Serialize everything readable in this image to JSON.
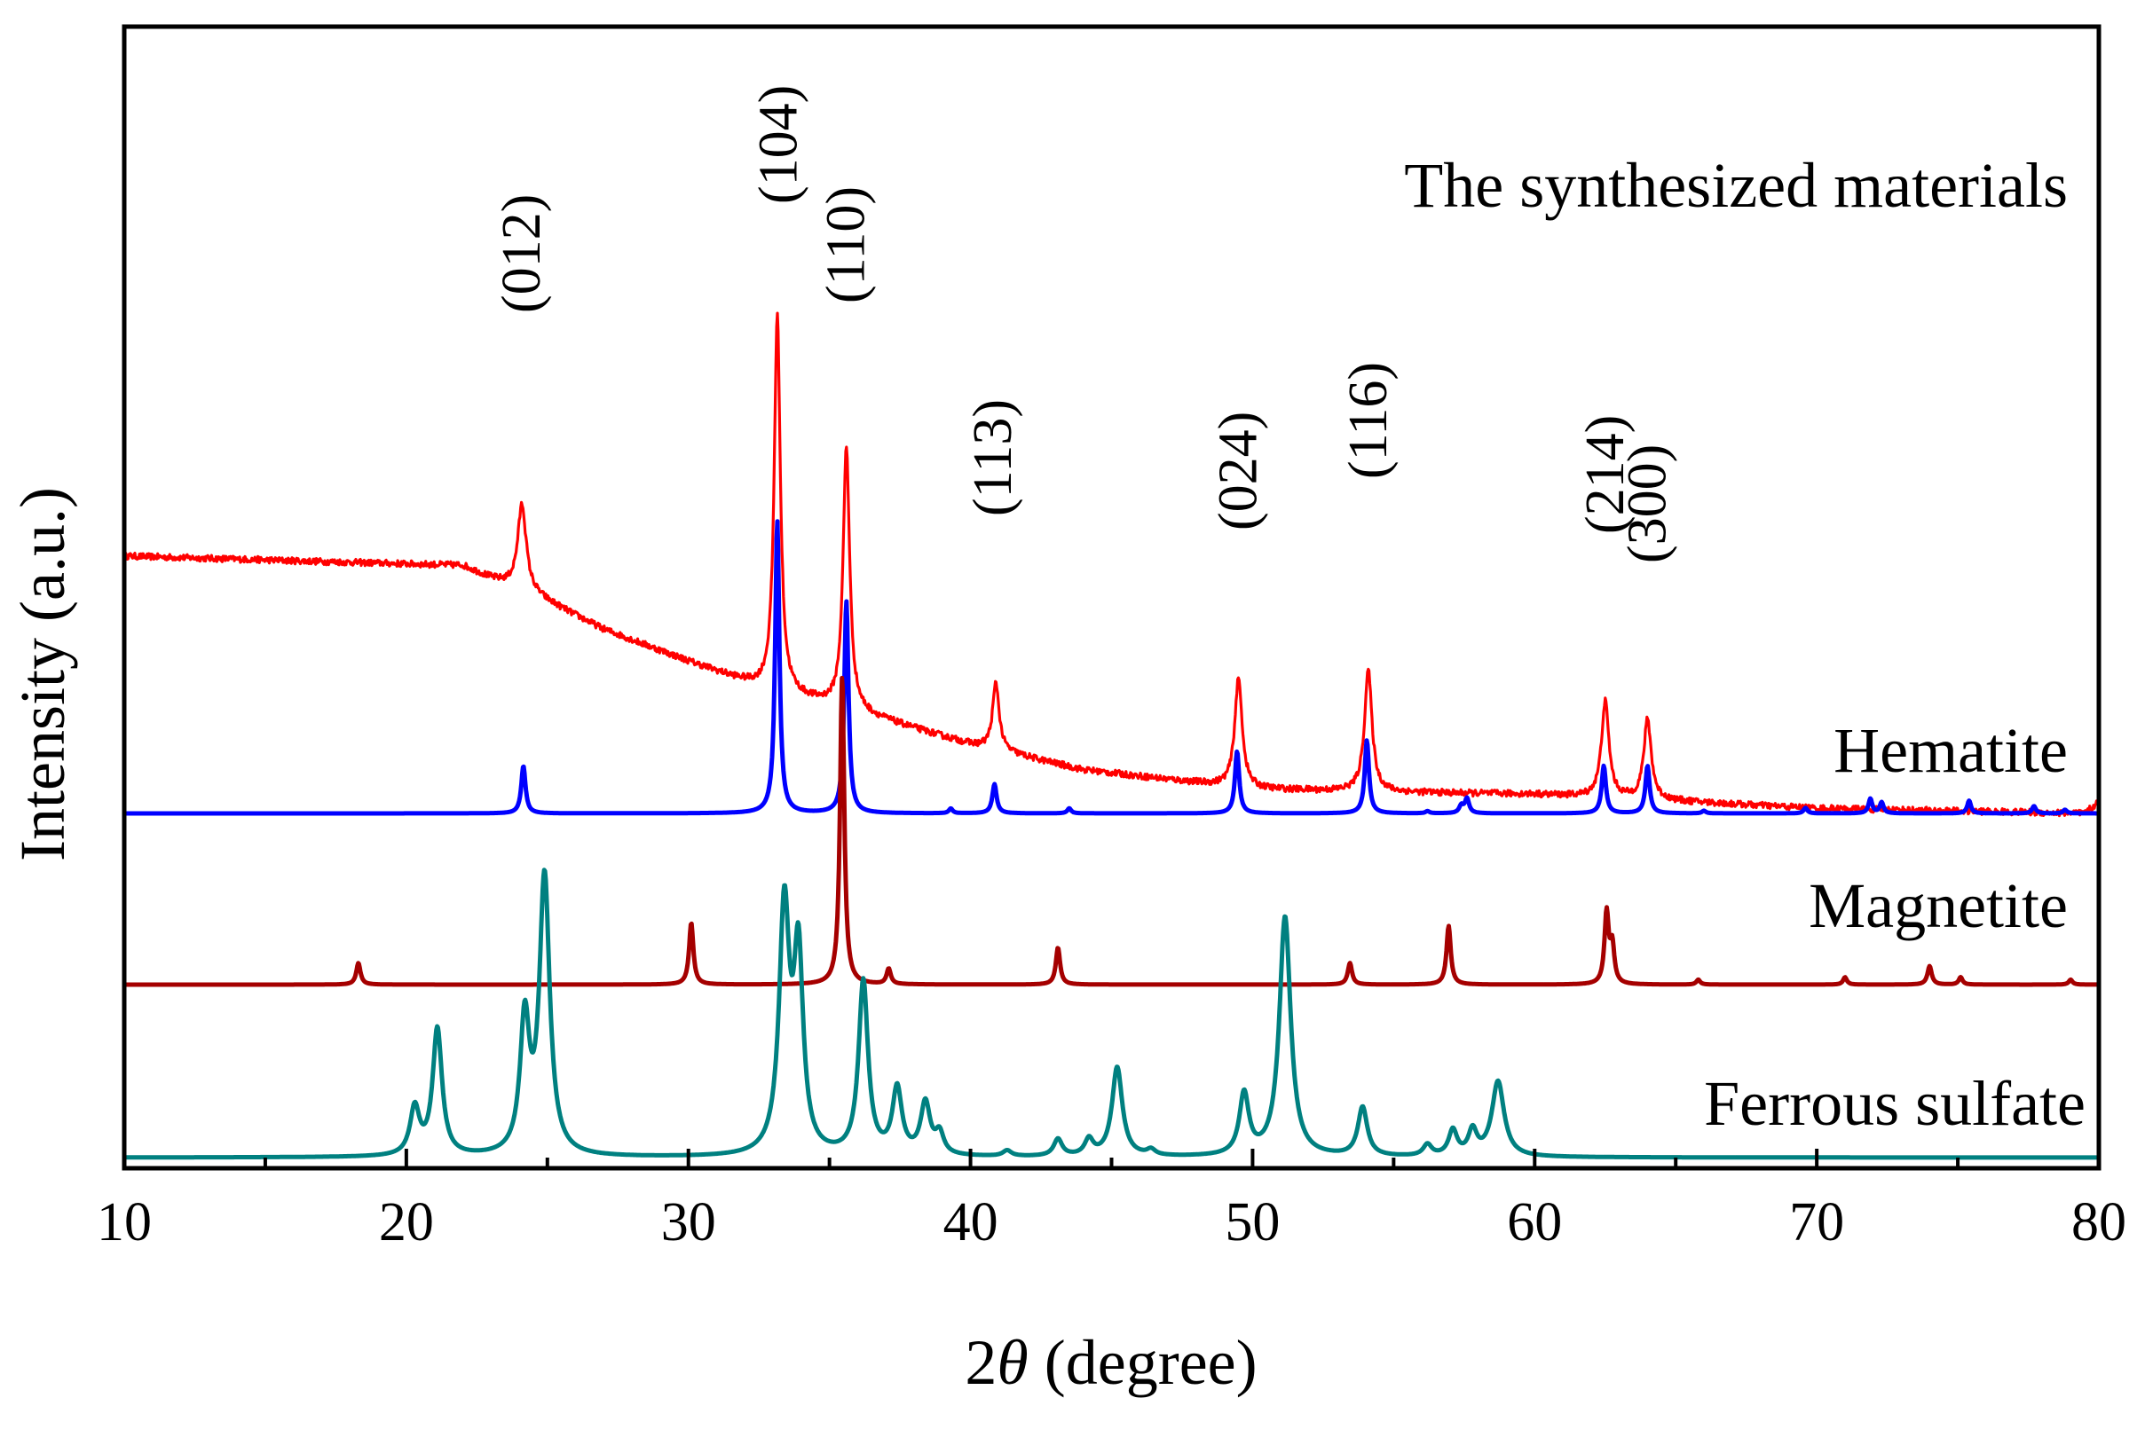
{
  "chart_data": {
    "type": "line",
    "title": "",
    "xlabel": "2θ (degree)",
    "xlabel_prefix": "2",
    "xlabel_symbol": "θ",
    "xlabel_unit": " (degree)",
    "ylabel": "Intensity (a.u.)",
    "xlim": [
      10,
      80
    ],
    "xticks": [
      10,
      20,
      30,
      40,
      50,
      60,
      70,
      80
    ],
    "yticks_visible": false,
    "grid": false,
    "series": [
      {
        "name": "The synthesized materials",
        "color": "#ff0000",
        "kind": "measured",
        "baseline": [
          [
            10,
            0.835
          ],
          [
            22,
            0.82
          ],
          [
            23,
            0.8
          ],
          [
            24.5,
            0.775
          ],
          [
            27,
            0.72
          ],
          [
            30,
            0.67
          ],
          [
            32.5,
            0.63
          ],
          [
            36,
            0.59
          ],
          [
            40,
            0.54
          ],
          [
            44,
            0.5
          ],
          [
            50,
            0.47
          ],
          [
            55,
            0.465
          ],
          [
            60,
            0.462
          ],
          [
            70,
            0.44
          ],
          [
            79.5,
            0.432
          ],
          [
            80,
            0.45
          ]
        ],
        "noise": 0.005,
        "peaks": [
          {
            "x": 24.1,
            "h": 0.135,
            "w": 0.18
          },
          {
            "x": 33.15,
            "h": 0.59,
            "w": 0.13
          },
          {
            "x": 35.6,
            "h": 0.41,
            "w": 0.14
          },
          {
            "x": 40.9,
            "h": 0.105,
            "w": 0.14
          },
          {
            "x": 49.5,
            "h": 0.17,
            "w": 0.16
          },
          {
            "x": 54.1,
            "h": 0.19,
            "w": 0.16
          },
          {
            "x": 62.5,
            "h": 0.15,
            "w": 0.16
          },
          {
            "x": 64.0,
            "h": 0.125,
            "w": 0.16
          }
        ]
      },
      {
        "name": "Hematite",
        "color": "#0000ff",
        "kind": "reference",
        "baseline": 0.0,
        "peaks": [
          {
            "x": 24.15,
            "h": 0.13,
            "w": 0.09
          },
          {
            "x": 33.15,
            "h": 0.8,
            "w": 0.09
          },
          {
            "x": 35.6,
            "h": 0.58,
            "w": 0.09
          },
          {
            "x": 39.3,
            "h": 0.013,
            "w": 0.08
          },
          {
            "x": 40.85,
            "h": 0.08,
            "w": 0.09
          },
          {
            "x": 43.5,
            "h": 0.014,
            "w": 0.08
          },
          {
            "x": 49.45,
            "h": 0.17,
            "w": 0.09
          },
          {
            "x": 54.05,
            "h": 0.2,
            "w": 0.09
          },
          {
            "x": 56.2,
            "h": 0.006,
            "w": 0.08
          },
          {
            "x": 57.4,
            "h": 0.02,
            "w": 0.09
          },
          {
            "x": 57.6,
            "h": 0.04,
            "w": 0.09
          },
          {
            "x": 62.45,
            "h": 0.13,
            "w": 0.09
          },
          {
            "x": 64.0,
            "h": 0.13,
            "w": 0.09
          },
          {
            "x": 66.0,
            "h": 0.007,
            "w": 0.08
          },
          {
            "x": 69.6,
            "h": 0.015,
            "w": 0.08
          },
          {
            "x": 71.9,
            "h": 0.04,
            "w": 0.08
          },
          {
            "x": 72.3,
            "h": 0.03,
            "w": 0.08
          },
          {
            "x": 75.4,
            "h": 0.035,
            "w": 0.08
          },
          {
            "x": 77.7,
            "h": 0.02,
            "w": 0.08
          },
          {
            "x": 78.8,
            "h": 0.01,
            "w": 0.08
          }
        ]
      },
      {
        "name": "Magnetite",
        "color": "#a50000",
        "kind": "reference",
        "baseline": 0.0,
        "peaks": [
          {
            "x": 18.3,
            "h": 0.035,
            "w": 0.09
          },
          {
            "x": 30.1,
            "h": 0.1,
            "w": 0.09
          },
          {
            "x": 35.45,
            "h": 0.5,
            "w": 0.09
          },
          {
            "x": 37.1,
            "h": 0.025,
            "w": 0.09
          },
          {
            "x": 43.1,
            "h": 0.06,
            "w": 0.09
          },
          {
            "x": 53.45,
            "h": 0.035,
            "w": 0.09
          },
          {
            "x": 56.95,
            "h": 0.095,
            "w": 0.09
          },
          {
            "x": 62.55,
            "h": 0.115,
            "w": 0.09
          },
          {
            "x": 62.75,
            "h": 0.06,
            "w": 0.09
          },
          {
            "x": 65.8,
            "h": 0.008,
            "w": 0.08
          },
          {
            "x": 71.0,
            "h": 0.012,
            "w": 0.08
          },
          {
            "x": 74.0,
            "h": 0.03,
            "w": 0.09
          },
          {
            "x": 75.1,
            "h": 0.012,
            "w": 0.08
          },
          {
            "x": 79.0,
            "h": 0.008,
            "w": 0.08
          }
        ]
      },
      {
        "name": "Ferrous sulfate",
        "color": "#008080",
        "kind": "reference",
        "baseline": 0.0,
        "peaks": [
          {
            "x": 20.3,
            "h": 0.05,
            "w": 0.2
          },
          {
            "x": 21.1,
            "h": 0.135,
            "w": 0.2
          },
          {
            "x": 24.2,
            "h": 0.14,
            "w": 0.2
          },
          {
            "x": 24.9,
            "h": 0.295,
            "w": 0.22
          },
          {
            "x": 33.4,
            "h": 0.26,
            "w": 0.22
          },
          {
            "x": 33.9,
            "h": 0.205,
            "w": 0.2
          },
          {
            "x": 36.2,
            "h": 0.185,
            "w": 0.2
          },
          {
            "x": 37.4,
            "h": 0.07,
            "w": 0.2
          },
          {
            "x": 38.4,
            "h": 0.055,
            "w": 0.2
          },
          {
            "x": 38.9,
            "h": 0.022,
            "w": 0.18
          },
          {
            "x": 41.3,
            "h": 0.006,
            "w": 0.18
          },
          {
            "x": 43.1,
            "h": 0.018,
            "w": 0.18
          },
          {
            "x": 44.2,
            "h": 0.017,
            "w": 0.18
          },
          {
            "x": 45.2,
            "h": 0.095,
            "w": 0.22
          },
          {
            "x": 46.4,
            "h": 0.006,
            "w": 0.18
          },
          {
            "x": 49.7,
            "h": 0.065,
            "w": 0.2
          },
          {
            "x": 51.15,
            "h": 0.255,
            "w": 0.24
          },
          {
            "x": 53.9,
            "h": 0.052,
            "w": 0.2
          },
          {
            "x": 56.2,
            "h": 0.012,
            "w": 0.18
          },
          {
            "x": 57.1,
            "h": 0.027,
            "w": 0.18
          },
          {
            "x": 57.8,
            "h": 0.026,
            "w": 0.18
          },
          {
            "x": 58.7,
            "h": 0.08,
            "w": 0.26
          }
        ]
      }
    ],
    "annotations": [
      {
        "text": "(012)",
        "x": 24.1
      },
      {
        "text": "(104)",
        "x": 33.2
      },
      {
        "text": "(110)",
        "x": 35.6
      },
      {
        "text": "(113)",
        "x": 40.8
      },
      {
        "text": "(024)",
        "x": 49.5
      },
      {
        "text": "(116)",
        "x": 54.1
      },
      {
        "text": "(214)",
        "x": 62.5
      },
      {
        "text": "(300)",
        "x": 64.0
      }
    ]
  }
}
